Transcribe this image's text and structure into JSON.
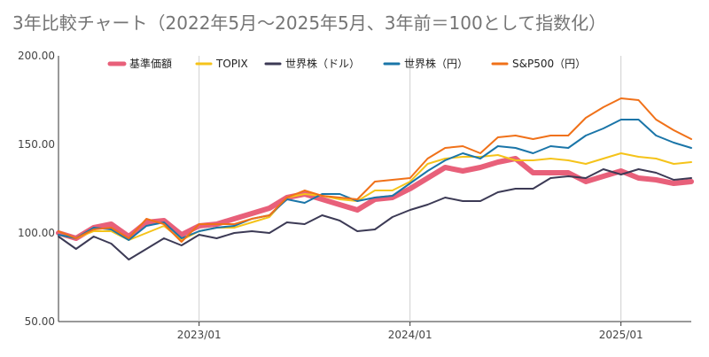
{
  "chart_data": {
    "type": "line",
    "title": "3年比較チャート（2022年5月〜2025年5月、3年前＝100として指数化）",
    "xlabel": "",
    "ylabel": "",
    "ylim": [
      50,
      200
    ],
    "yticks": [
      "50.00",
      "100.00",
      "150.00",
      "200.00"
    ],
    "xticks": [
      {
        "label": "2023/01",
        "index": 8
      },
      {
        "label": "2024/01",
        "index": 20
      },
      {
        "label": "2025/01",
        "index": 32
      }
    ],
    "x": [
      "2022/05",
      "2022/06",
      "2022/07",
      "2022/08",
      "2022/09",
      "2022/10",
      "2022/11",
      "2022/12",
      "2023/01",
      "2023/02",
      "2023/03",
      "2023/04",
      "2023/05",
      "2023/06",
      "2023/07",
      "2023/08",
      "2023/09",
      "2023/10",
      "2023/11",
      "2023/12",
      "2024/01",
      "2024/02",
      "2024/03",
      "2024/04",
      "2024/05",
      "2024/06",
      "2024/07",
      "2024/08",
      "2024/09",
      "2024/10",
      "2024/11",
      "2024/12",
      "2025/01",
      "2025/02",
      "2025/03",
      "2025/04",
      "2025/05"
    ],
    "grid": {
      "vertical_at_xticks": true,
      "horizontal": false
    },
    "legend_position": "top",
    "series": [
      {
        "name": "基準価額",
        "color": "#e8607a",
        "width": 6,
        "values": [
          100,
          97,
          103,
          105,
          98,
          106,
          107,
          99,
          104,
          105,
          108,
          111,
          114,
          120,
          122,
          119,
          116,
          113,
          119,
          120,
          125,
          131,
          137,
          135,
          137,
          140,
          142,
          134,
          134,
          134,
          129,
          132,
          135,
          131,
          130,
          128,
          129
        ]
      },
      {
        "name": "TOPIX",
        "color": "#f5c31a",
        "width": 2,
        "values": [
          99,
          97,
          101,
          101,
          96,
          100,
          104,
          96,
          101,
          103,
          103,
          106,
          109,
          120,
          122,
          121,
          119,
          118,
          124,
          124,
          129,
          139,
          142,
          143,
          143,
          144,
          141,
          141,
          142,
          141,
          139,
          142,
          145,
          143,
          142,
          139,
          140
        ]
      },
      {
        "name": "世界株（ドル）",
        "color": "#3c3a55",
        "width": 2,
        "values": [
          98,
          91,
          98,
          94,
          85,
          91,
          97,
          93,
          99,
          97,
          100,
          101,
          100,
          106,
          105,
          110,
          107,
          101,
          102,
          109,
          113,
          116,
          120,
          118,
          118,
          123,
          125,
          125,
          131,
          132,
          131,
          136,
          133,
          136,
          134,
          130,
          131
        ]
      },
      {
        "name": "世界株（円）",
        "color": "#1a75a8",
        "width": 2,
        "values": [
          99,
          97,
          103,
          102,
          96,
          104,
          106,
          97,
          101,
          103,
          104,
          108,
          110,
          119,
          117,
          122,
          122,
          118,
          120,
          121,
          128,
          135,
          141,
          145,
          142,
          149,
          148,
          145,
          149,
          148,
          155,
          159,
          164,
          164,
          155,
          151,
          148
        ]
      },
      {
        "name": "S&P500（円）",
        "color": "#f07119",
        "width": 2,
        "values": [
          101,
          97,
          102,
          103,
          97,
          108,
          105,
          95,
          105,
          105,
          105,
          108,
          110,
          120,
          124,
          121,
          120,
          119,
          129,
          130,
          131,
          142,
          148,
          149,
          145,
          154,
          155,
          153,
          155,
          155,
          165,
          171,
          176,
          175,
          164,
          158,
          153
        ]
      }
    ]
  }
}
